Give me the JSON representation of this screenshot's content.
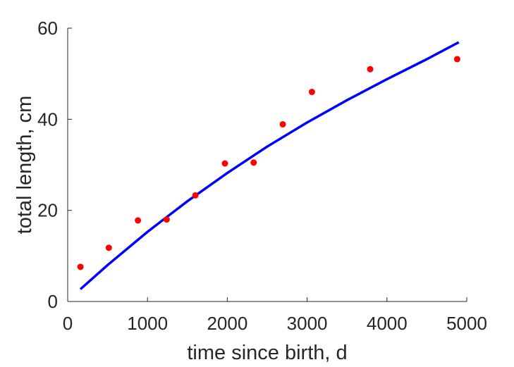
{
  "chart_data": {
    "type": "scatter",
    "title": "",
    "xlabel": "time since birth, d",
    "ylabel": "total length, cm",
    "xlim": [
      0,
      5000
    ],
    "ylim": [
      0,
      60
    ],
    "xticks": [
      0,
      1000,
      2000,
      3000,
      4000,
      5000
    ],
    "yticks": [
      0,
      20,
      40,
      60
    ],
    "xtick_labels": [
      "0",
      "1000",
      "2000",
      "3000",
      "4000",
      "5000"
    ],
    "ytick_labels": [
      "0",
      "20",
      "40",
      "60"
    ],
    "grid": false,
    "legend": "none",
    "series": [
      {
        "kind": "points",
        "color": "#ff0000",
        "x": [
          160,
          515,
          880,
          1240,
          1600,
          1970,
          2330,
          2695,
          3060,
          3790,
          4880
        ],
        "y": [
          7.6,
          11.8,
          17.8,
          18.0,
          23.3,
          30.3,
          30.5,
          38.9,
          46.0,
          51.0,
          53.2
        ]
      },
      {
        "kind": "line",
        "color": "#0000ff",
        "x": [
          160,
          500,
          1000,
          1500,
          2000,
          2500,
          3000,
          3500,
          4000,
          4500,
          4900
        ],
        "y": [
          2.7,
          8.0,
          15.3,
          22.0,
          28.2,
          34.0,
          39.3,
          44.2,
          48.8,
          53.2,
          56.9
        ]
      }
    ]
  }
}
